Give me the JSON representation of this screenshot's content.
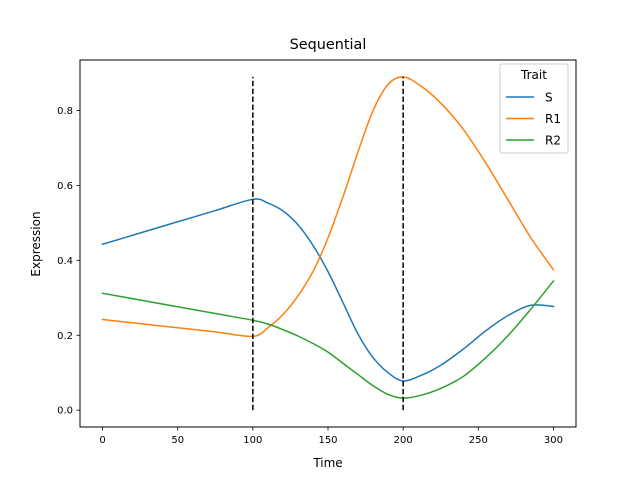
{
  "chart_data": {
    "type": "line",
    "title": "Sequential",
    "xlabel": "Time",
    "ylabel": "Expression",
    "xlim": [
      -15,
      315
    ],
    "ylim": [
      -0.045,
      0.935
    ],
    "xticks": [
      0,
      50,
      100,
      150,
      200,
      250,
      300
    ],
    "xtick_labels": [
      "0",
      "50",
      "100",
      "150",
      "200",
      "250",
      "300"
    ],
    "yticks": [
      0.0,
      0.2,
      0.4,
      0.6,
      0.8
    ],
    "ytick_labels": [
      "0.0",
      "0.2",
      "0.4",
      "0.6",
      "0.8"
    ],
    "grid": false,
    "legend": {
      "title": "Trait",
      "placement": "top-right"
    },
    "vlines": [
      {
        "x": 100,
        "ymin": 0.0,
        "ymax": 0.89,
        "style": "dashed",
        "color": "#000000"
      },
      {
        "x": 200,
        "ymin": 0.0,
        "ymax": 0.89,
        "style": "dashed",
        "color": "#000000"
      }
    ],
    "series": [
      {
        "name": "S",
        "color": "#1f77b4",
        "x": [
          0,
          25,
          50,
          75,
          100,
          110,
          120,
          130,
          140,
          150,
          160,
          170,
          180,
          190,
          200,
          212,
          225,
          240,
          255,
          270,
          285,
          300
        ],
        "y": [
          0.443,
          0.473,
          0.503,
          0.533,
          0.563,
          0.553,
          0.532,
          0.495,
          0.44,
          0.37,
          0.287,
          0.203,
          0.14,
          0.1,
          0.078,
          0.093,
          0.12,
          0.163,
          0.212,
          0.253,
          0.28,
          0.277
        ]
      },
      {
        "name": "R1",
        "color": "#ff7f0e",
        "x": [
          0,
          25,
          50,
          75,
          100,
          110,
          120,
          130,
          140,
          150,
          160,
          170,
          180,
          190,
          200,
          212,
          225,
          240,
          255,
          270,
          285,
          300
        ],
        "y": [
          0.242,
          0.231,
          0.22,
          0.209,
          0.197,
          0.22,
          0.255,
          0.305,
          0.37,
          0.46,
          0.57,
          0.69,
          0.8,
          0.87,
          0.89,
          0.865,
          0.82,
          0.75,
          0.66,
          0.56,
          0.46,
          0.375
        ]
      },
      {
        "name": "R2",
        "color": "#2ca02c",
        "x": [
          0,
          25,
          50,
          75,
          100,
          110,
          120,
          130,
          140,
          150,
          160,
          170,
          180,
          190,
          200,
          212,
          225,
          240,
          255,
          270,
          285,
          300
        ],
        "y": [
          0.312,
          0.294,
          0.276,
          0.258,
          0.24,
          0.23,
          0.215,
          0.198,
          0.178,
          0.155,
          0.125,
          0.095,
          0.065,
          0.042,
          0.032,
          0.04,
          0.058,
          0.09,
          0.14,
          0.2,
          0.27,
          0.345
        ]
      }
    ]
  }
}
